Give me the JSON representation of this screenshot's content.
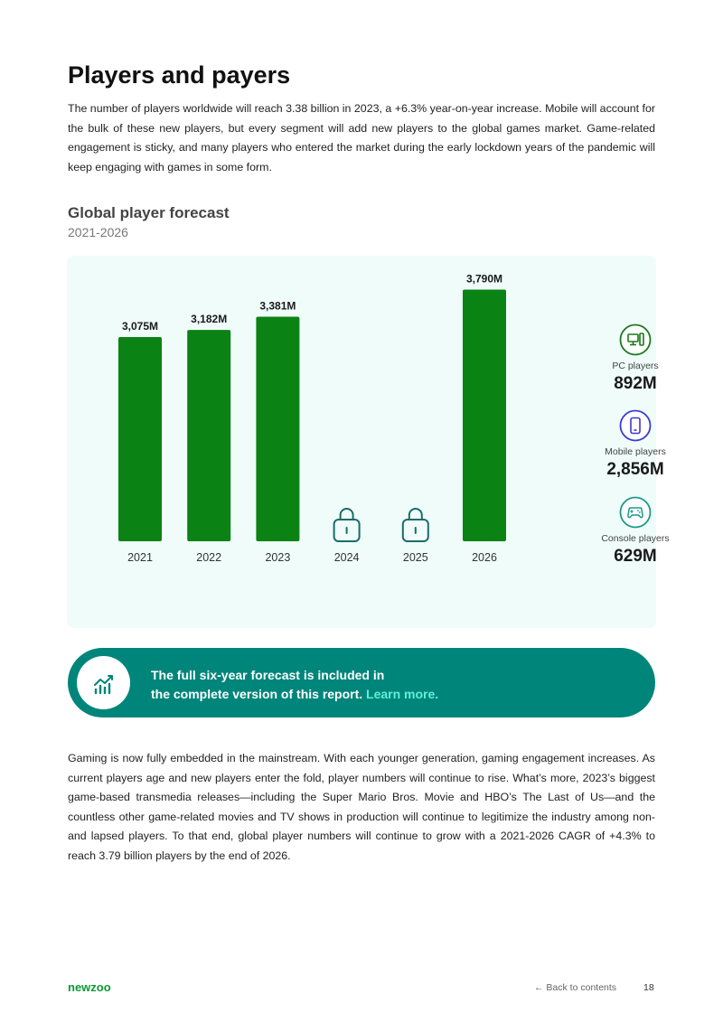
{
  "page": {
    "title": "Players and payers",
    "intro": "The number of players worldwide will reach 3.38 billion in 2023, a +6.3% year-on-year increase. Mobile will account for the bulk of these new players, but every segment will add new players to the global games market. Game-related engagement is sticky, and many players who entered the market during the early lockdown years of the pandemic will keep engaging with games in some form.",
    "body": "Gaming is now fully embedded in the mainstream. With each younger generation, gaming engagement increases. As current players age and new players enter the fold, player numbers will continue to rise. What’s more, 2023’s biggest game-based transmedia releases—including the Super Mario Bros. Movie and HBO’s The Last of Us—and the countless other game-related movies and TV shows in production will continue to legitimize the industry among non- and lapsed players. To that end, global player numbers will continue to grow with a 2021-2026 CAGR of +4.3% to reach 3.79 billion players by the end of 2026."
  },
  "chart_data": {
    "type": "bar",
    "title": "Global player forecast",
    "subtitle": "2021-2026",
    "categories": [
      "2021",
      "2022",
      "2023",
      "2024",
      "2025",
      "2026"
    ],
    "values": [
      3075,
      3182,
      3381,
      null,
      null,
      3790
    ],
    "value_labels": [
      "3,075M",
      "3,182M",
      "3,381M",
      "",
      "",
      "3,790M"
    ],
    "locked": [
      false,
      false,
      false,
      true,
      true,
      false
    ],
    "bar_color": "#0b8214",
    "lock_color": "#1d6b68",
    "ylim": [
      0,
      4300
    ],
    "grid": false,
    "legend": "none"
  },
  "stats": [
    {
      "id": "pc",
      "icon": "pc-icon",
      "label": "PC players",
      "value": "892M",
      "color": "#1a7a1a"
    },
    {
      "id": "mobile",
      "icon": "mobile-icon",
      "label": "Mobile players",
      "value": "2,856M",
      "color": "#3a3ad0"
    },
    {
      "id": "console",
      "icon": "gamepad-icon",
      "label": "Console players",
      "value": "629M",
      "color": "#1a9a8a"
    }
  ],
  "banner": {
    "icon": "chart-icon",
    "line1": "The full six-year forecast is included in",
    "line2": "the complete version of this report.",
    "link": "Learn more.",
    "color": "#00857a"
  },
  "footer": {
    "logo": "newzoo",
    "back": "← Back to contents",
    "page": "18"
  }
}
